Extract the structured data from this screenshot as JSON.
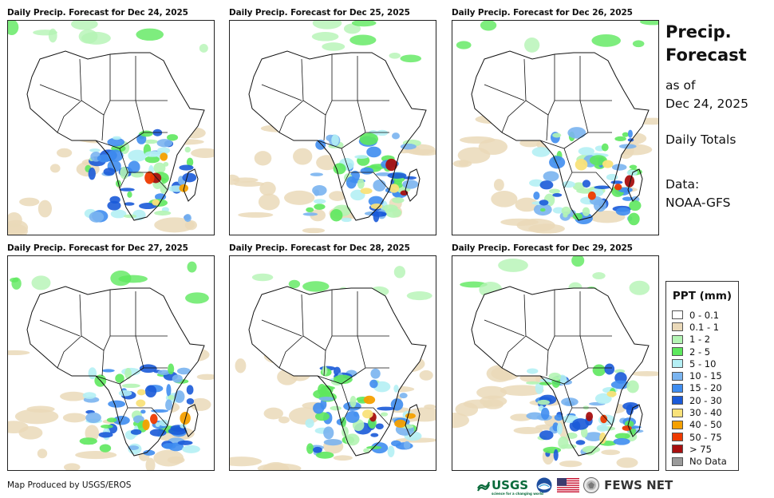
{
  "panels": [
    {
      "title": "Daily Precip. Forecast for Dec 24, 2025"
    },
    {
      "title": "Daily Precip. Forecast for Dec 25, 2025"
    },
    {
      "title": "Daily Precip. Forecast for Dec 26, 2025"
    },
    {
      "title": "Daily Precip. Forecast for Dec 27, 2025"
    },
    {
      "title": "Daily Precip. Forecast for Dec 28, 2025"
    },
    {
      "title": "Daily Precip. Forecast for Dec 29, 2025"
    }
  ],
  "side": {
    "title_line1": "Precip.",
    "title_line2": "Forecast",
    "asof_line1": "as of",
    "asof_line2": "Dec 24, 2025",
    "totals": "Daily Totals",
    "data_line1": "Data:",
    "data_line2": "NOAA-GFS"
  },
  "legend": {
    "title": "PPT (mm)",
    "items": [
      {
        "label": "0 - 0.1",
        "color": "#ffffff"
      },
      {
        "label": "0.1 - 1",
        "color": "#ead9b9"
      },
      {
        "label": "1 - 2",
        "color": "#b4f4b4"
      },
      {
        "label": "2 - 5",
        "color": "#5ee85e"
      },
      {
        "label": "5 - 10",
        "color": "#b4eff4"
      },
      {
        "label": "10 - 15",
        "color": "#7ab4f0"
      },
      {
        "label": "15 - 20",
        "color": "#3f8df0"
      },
      {
        "label": "20 - 30",
        "color": "#1a5ad8"
      },
      {
        "label": "30 - 40",
        "color": "#f9e27a"
      },
      {
        "label": "40 - 50",
        "color": "#f5a000"
      },
      {
        "label": "50 - 75",
        "color": "#ee3a00"
      },
      {
        "label": "> 75",
        "color": "#a80f0f"
      },
      {
        "label": "No Data",
        "color": "#9a9a9a"
      }
    ]
  },
  "footer": {
    "credit": "Map Produced by USGS/EROS",
    "usgs": "USGS",
    "usgs_tagline": "science for a changing world",
    "fews": "FEWS NET"
  }
}
